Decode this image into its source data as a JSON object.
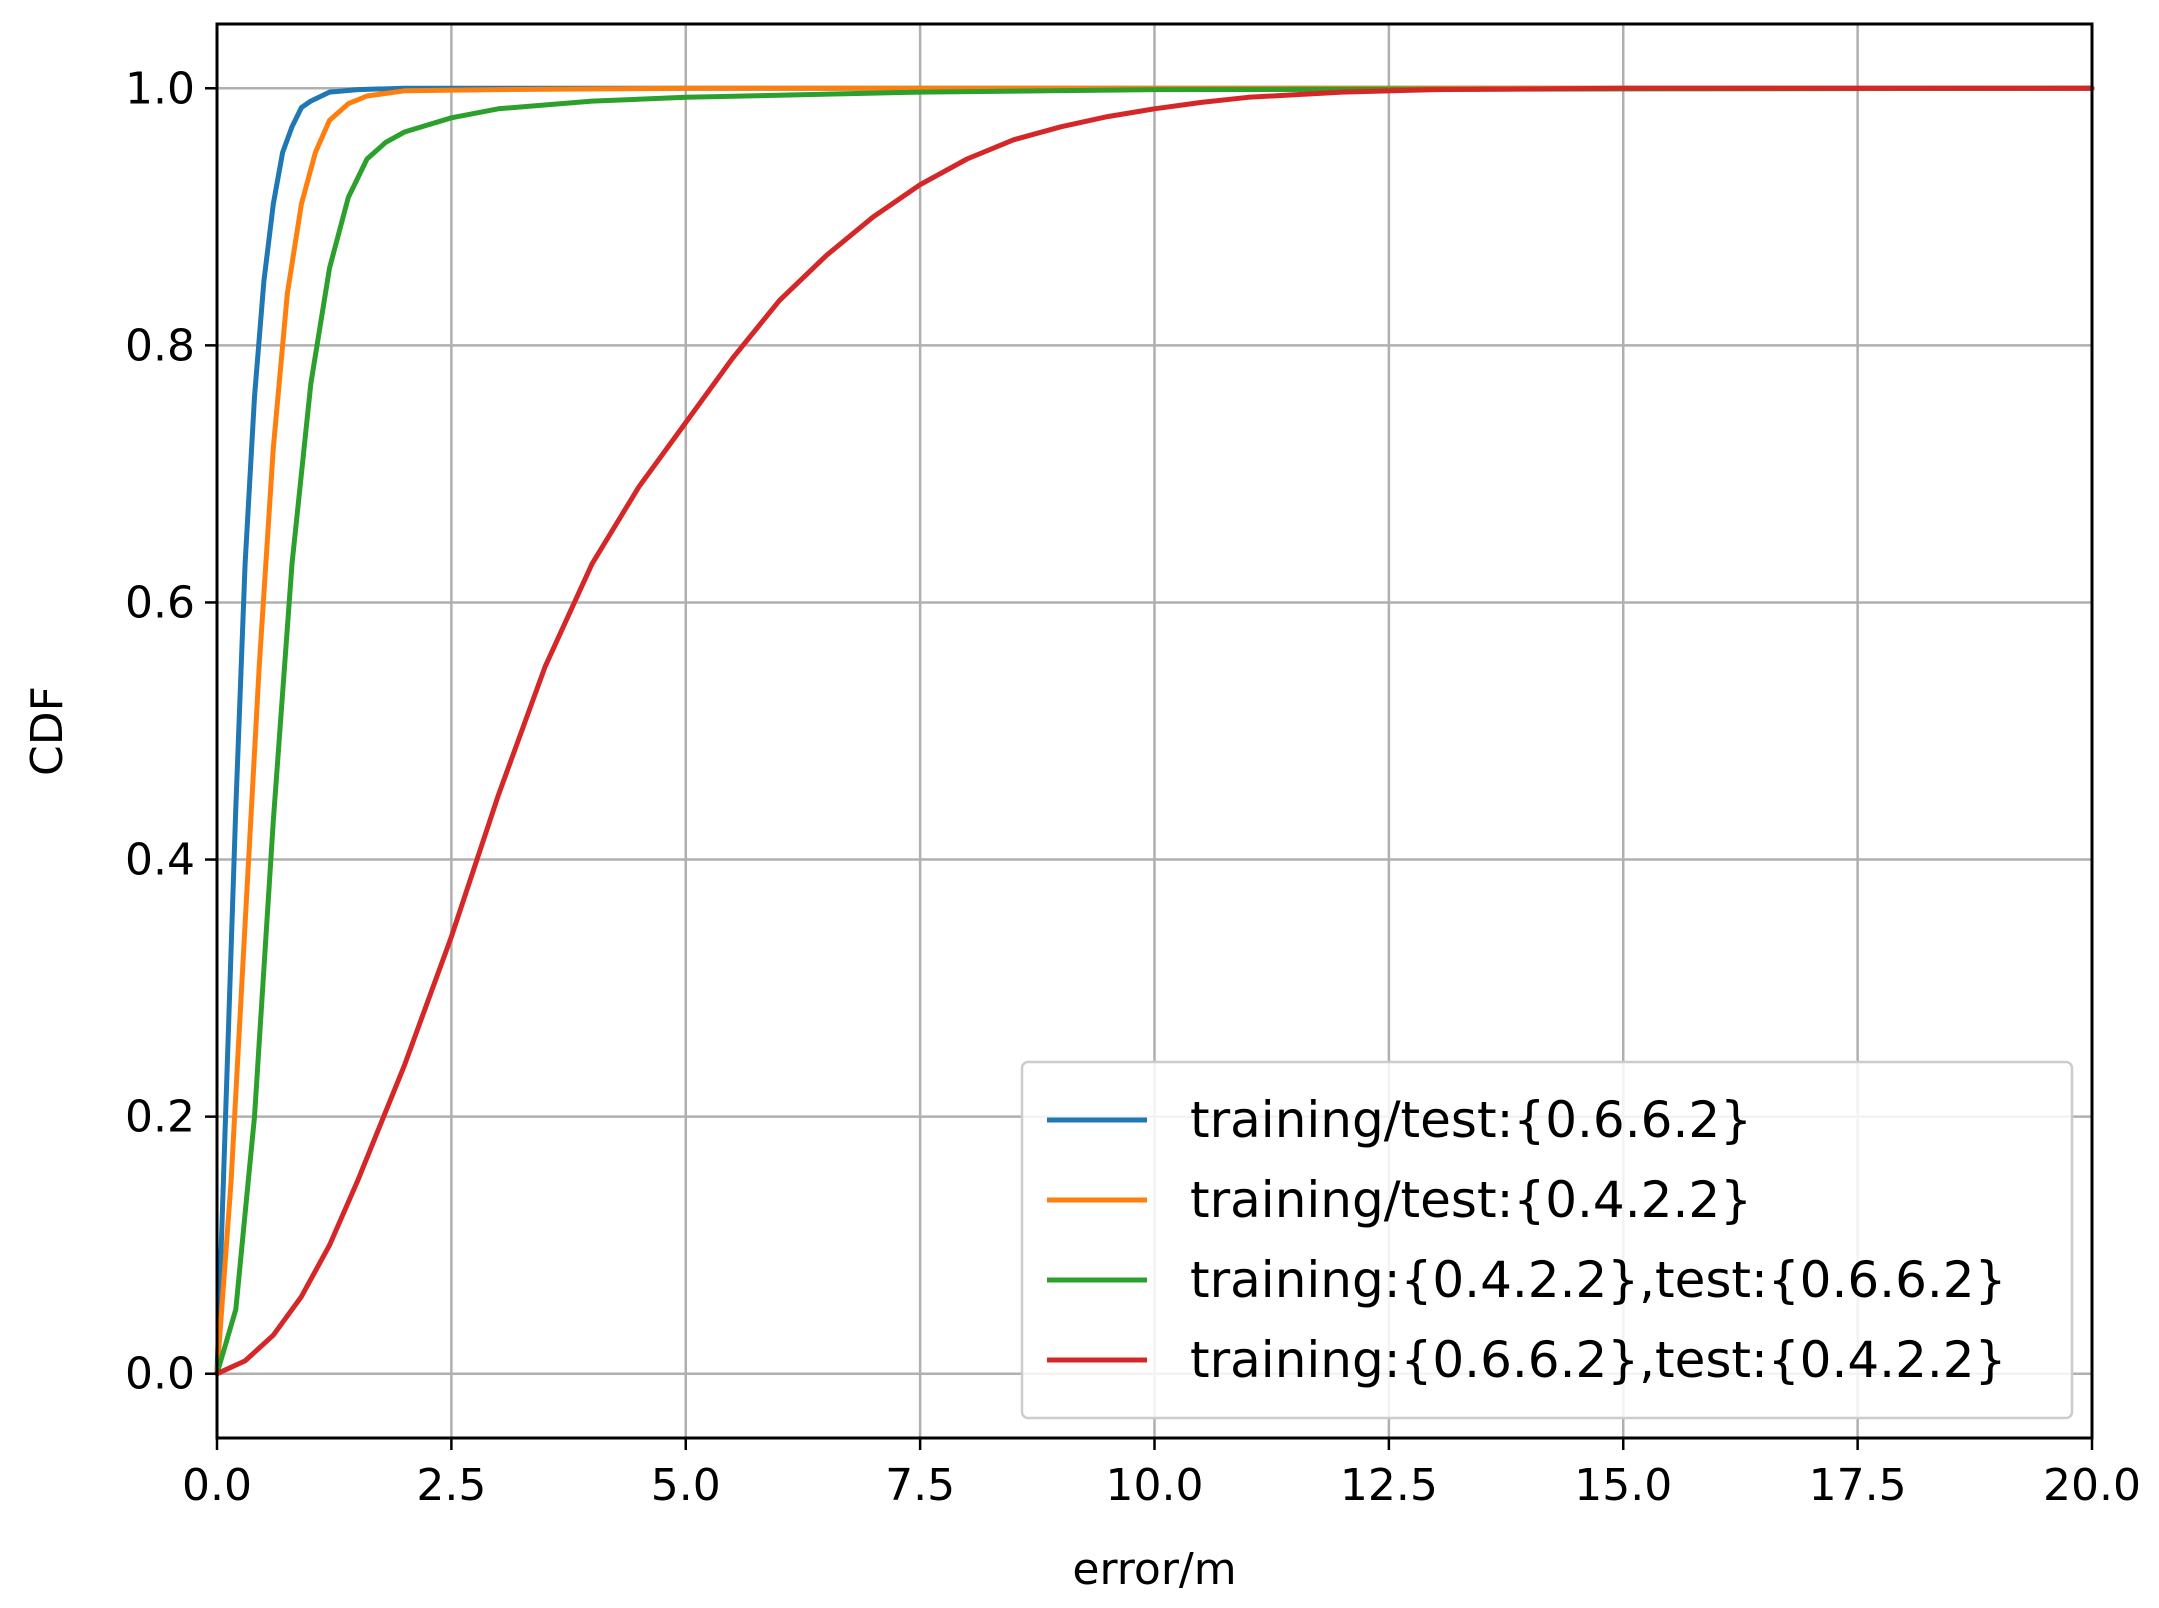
{
  "chart_data": {
    "type": "line",
    "title": "",
    "xlabel": "error/m",
    "ylabel": "CDF",
    "xlim": [
      0,
      20
    ],
    "ylim": [
      -0.05,
      1.05
    ],
    "xticks": [
      0,
      2.5,
      5,
      7.5,
      10,
      12.5,
      15,
      17.5,
      20
    ],
    "xtick_labels": [
      "0.0",
      "2.5",
      "5.0",
      "7.5",
      "10.0",
      "12.5",
      "15.0",
      "17.5",
      "20.0"
    ],
    "yticks": [
      0,
      0.2,
      0.4,
      0.6,
      0.8,
      1.0
    ],
    "ytick_labels": [
      "0.0",
      "0.2",
      "0.4",
      "0.6",
      "0.8",
      "1.0"
    ],
    "grid": true,
    "legend_position": "lower-right",
    "series": [
      {
        "name": "training/test:{0.6.6.2}",
        "color": "#1f77b4",
        "x": [
          0,
          0.1,
          0.2,
          0.3,
          0.4,
          0.5,
          0.6,
          0.7,
          0.8,
          0.9,
          1.0,
          1.2,
          1.5,
          2.0,
          5.0,
          20.0
        ],
        "y": [
          0,
          0.22,
          0.44,
          0.63,
          0.76,
          0.85,
          0.91,
          0.95,
          0.97,
          0.985,
          0.99,
          0.997,
          0.999,
          1.0,
          1.0,
          1.0
        ]
      },
      {
        "name": "training/test:{0.4.2.2}",
        "color": "#ff7f0e",
        "x": [
          0,
          0.15,
          0.3,
          0.45,
          0.6,
          0.75,
          0.9,
          1.05,
          1.2,
          1.4,
          1.6,
          2.0,
          3.0,
          5.0,
          20.0
        ],
        "y": [
          0,
          0.15,
          0.35,
          0.55,
          0.72,
          0.84,
          0.91,
          0.95,
          0.975,
          0.988,
          0.994,
          0.998,
          0.999,
          1.0,
          1.0
        ]
      },
      {
        "name": "training:{0.4.2.2},test:{0.6.6.2}",
        "color": "#2ca02c",
        "x": [
          0,
          0.2,
          0.4,
          0.6,
          0.8,
          1.0,
          1.2,
          1.4,
          1.6,
          1.8,
          2.0,
          2.5,
          3.0,
          4.0,
          5.0,
          7.5,
          10.0,
          20.0
        ],
        "y": [
          0,
          0.05,
          0.2,
          0.43,
          0.63,
          0.77,
          0.86,
          0.915,
          0.945,
          0.958,
          0.966,
          0.977,
          0.984,
          0.99,
          0.993,
          0.997,
          0.999,
          1.0
        ]
      },
      {
        "name": "training:{0.6.6.2},test:{0.4.2.2}",
        "color": "#d62728",
        "x": [
          0,
          0.3,
          0.6,
          0.9,
          1.2,
          1.5,
          2.0,
          2.5,
          3.0,
          3.5,
          4.0,
          4.5,
          5.0,
          5.5,
          6.0,
          6.5,
          7.0,
          7.5,
          8.0,
          8.5,
          9.0,
          9.5,
          10.0,
          10.5,
          11.0,
          12.0,
          13.0,
          15.0,
          20.0
        ],
        "y": [
          0,
          0.01,
          0.03,
          0.06,
          0.1,
          0.15,
          0.24,
          0.34,
          0.45,
          0.55,
          0.63,
          0.69,
          0.74,
          0.79,
          0.835,
          0.87,
          0.9,
          0.925,
          0.945,
          0.96,
          0.97,
          0.978,
          0.984,
          0.989,
          0.993,
          0.997,
          0.999,
          1.0,
          1.0
        ]
      }
    ]
  }
}
